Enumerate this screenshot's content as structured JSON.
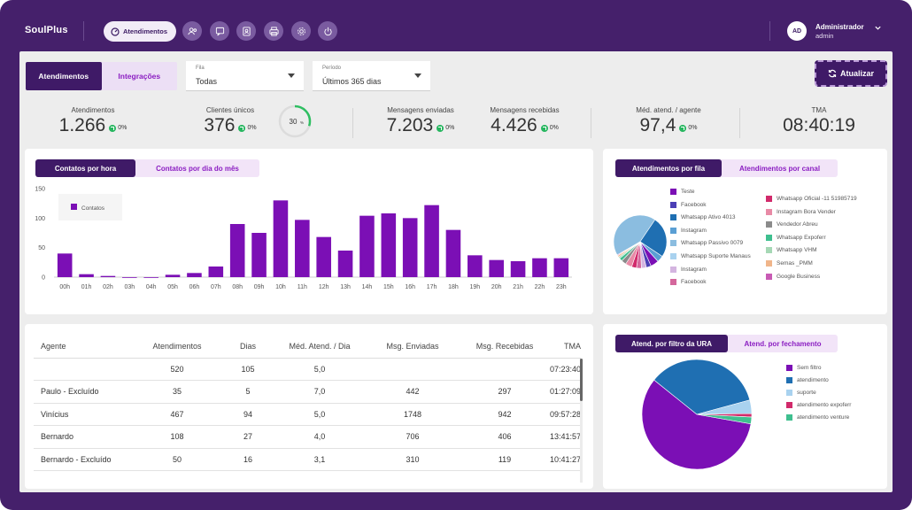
{
  "app": {
    "logo": "SoulPlus"
  },
  "nav": {
    "active": "Atendimentos",
    "icons": [
      "users-icon",
      "chat-icon",
      "contact-icon",
      "printer-icon",
      "settings-icon",
      "power-icon"
    ]
  },
  "user": {
    "initials": "AD",
    "name": "Administrador",
    "role": "admin"
  },
  "filters": {
    "tabs": [
      "Atendimentos",
      "Integrações"
    ],
    "fila_label": "Fila",
    "fila_value": "Todas",
    "periodo_label": "Período",
    "periodo_value": "Últimos 365 dias",
    "refresh_label": "Atualizar"
  },
  "kpis": [
    {
      "title": "Atendimentos",
      "value": "1.266",
      "pct": "0%"
    },
    {
      "title": "Clientes únicos",
      "value": "376",
      "pct": "0%",
      "ring": "30",
      "ring_unit": "%",
      "ring_fraction": 0.3
    },
    {
      "title": "Mensagens enviadas",
      "value": "7.203",
      "pct": "0%"
    },
    {
      "title": "Mensagens recebidas",
      "value": "4.426",
      "pct": "0%"
    },
    {
      "title": "Méd. atend. / agente",
      "value": "97,4",
      "pct": "0%"
    },
    {
      "title": "TMA",
      "value": "08:40:19"
    }
  ],
  "hourly": {
    "tabs": [
      "Contatos por hora",
      "Contatos por dia do mês"
    ],
    "legend": "Contatos"
  },
  "queue": {
    "tabs": [
      "Atendimentos por fila",
      "Atendimentos por canal"
    ],
    "legend_left": [
      {
        "label": "Teste",
        "color": "#7b0fb5"
      },
      {
        "label": "Facebook",
        "color": "#4b3fb5"
      },
      {
        "label": "Whatsapp Ativo 4013",
        "color": "#1f6fb2"
      },
      {
        "label": "Instagram",
        "color": "#5a9fd4"
      },
      {
        "label": "Whatsapp Passivo 0079",
        "color": "#8bbde0"
      },
      {
        "label": "Whatsapp Suporte Manaus",
        "color": "#a9d2ef"
      },
      {
        "label": "Instagram",
        "color": "#d4b5e0"
      },
      {
        "label": "Facebook",
        "color": "#d4679c"
      }
    ],
    "legend_right": [
      {
        "label": "Whatsapp Oficial -11 51985719",
        "color": "#d12a6b"
      },
      {
        "label": "Instagram Bora Vender",
        "color": "#e88aa6"
      },
      {
        "label": "Vendedor Abreu",
        "color": "#8b8b8b"
      },
      {
        "label": "Whatsapp Expoferr",
        "color": "#3fbf8f"
      },
      {
        "label": "Whatsapp VHM",
        "color": "#a6d8b5"
      },
      {
        "label": "Semas _PMM",
        "color": "#f0b58a"
      },
      {
        "label": "Google Business",
        "color": "#c85bb4"
      }
    ]
  },
  "table": {
    "headers": [
      "Agente",
      "Atendimentos",
      "Dias",
      "Méd. Atend. / Dia",
      "Msg. Enviadas",
      "Msg. Recebidas",
      "TMA"
    ],
    "rows": [
      [
        "",
        "520",
        "105",
        "5,0",
        "",
        "",
        "07:23:40"
      ],
      [
        "Paulo - Excluído",
        "35",
        "5",
        "7,0",
        "442",
        "297",
        "01:27:09"
      ],
      [
        "Vinícius",
        "467",
        "94",
        "5,0",
        "1748",
        "942",
        "09:57:28"
      ],
      [
        "Bernardo",
        "108",
        "27",
        "4,0",
        "706",
        "406",
        "13:41:57"
      ],
      [
        "Bernardo - Excluído",
        "50",
        "16",
        "3,1",
        "310",
        "119",
        "10:41:27"
      ]
    ]
  },
  "ura": {
    "tabs": [
      "Atend. por filtro da URA",
      "Atend. por fechamento"
    ],
    "legend": [
      {
        "label": "Sem filtro",
        "color": "#7b0fb5"
      },
      {
        "label": "atendimento",
        "color": "#1f6fb2"
      },
      {
        "label": "suporte",
        "color": "#a9d2ef"
      },
      {
        "label": "atendimento expoferr",
        "color": "#d12a6b"
      },
      {
        "label": "atendimento venture",
        "color": "#3fbf8f"
      }
    ]
  },
  "chart_data": [
    {
      "type": "bar",
      "title": "Contatos por hora",
      "series": [
        {
          "name": "Contatos",
          "values": [
            40,
            5,
            2,
            0,
            0,
            4,
            7,
            18,
            90,
            75,
            130,
            97,
            68,
            45,
            104,
            108,
            100,
            122,
            80,
            37,
            29,
            27,
            32,
            32
          ]
        }
      ],
      "categories": [
        "00h",
        "01h",
        "02h",
        "03h",
        "04h",
        "05h",
        "06h",
        "07h",
        "08h",
        "09h",
        "10h",
        "11h",
        "12h",
        "13h",
        "14h",
        "15h",
        "16h",
        "17h",
        "18h",
        "19h",
        "20h",
        "21h",
        "22h",
        "23h"
      ],
      "ylim": [
        0,
        150
      ],
      "yticks": [
        "0",
        "50",
        "100",
        "150"
      ],
      "grid": false,
      "legend": "top-left"
    },
    {
      "type": "pie",
      "title": "Atendimentos por fila",
      "labels": [
        "Whatsapp Passivo 0079",
        "Whatsapp Ativo 4013",
        "Instagram",
        "Teste",
        "Facebook",
        "Instagram",
        "Facebook",
        "Whatsapp Oficial -11 51985719",
        "Instagram Bora Vender",
        "Vendedor Abreu",
        "Whatsapp Expoferr",
        "Whatsapp VHM",
        "Semas _PMM",
        "Google Business"
      ],
      "values": [
        43,
        25,
        4,
        5,
        3,
        3,
        3,
        3,
        4,
        3,
        2,
        1,
        1,
        0.5
      ],
      "colors": [
        "#8bbde0",
        "#1f6fb2",
        "#5a9fd4",
        "#7b0fb5",
        "#4b3fb5",
        "#d4b5e0",
        "#d4679c",
        "#d12a6b",
        "#e88aa6",
        "#8b8b8b",
        "#3fbf8f",
        "#a6d8b5",
        "#f0b58a",
        "#c85bb4"
      ]
    },
    {
      "type": "pie",
      "title": "Atend. por filtro da URA",
      "labels": [
        "Sem filtro",
        "atendimento",
        "suporte",
        "atendimento expoferr",
        "atendimento venture"
      ],
      "values": [
        58,
        35,
        4,
        1,
        2
      ],
      "colors": [
        "#7b0fb5",
        "#1f6fb2",
        "#a9d2ef",
        "#d12a6b",
        "#3fbf8f"
      ]
    }
  ]
}
